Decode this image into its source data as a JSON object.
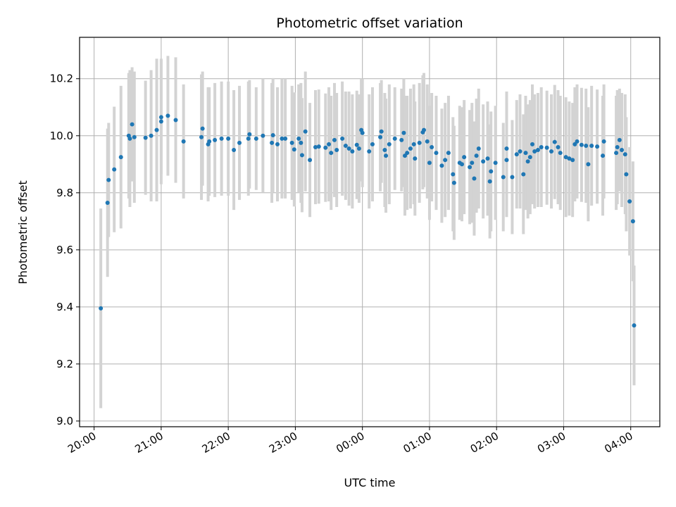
{
  "chart_data": {
    "type": "scatter",
    "title": "Photometric offset variation",
    "xlabel": "UTC time",
    "ylabel": "Photometric offset",
    "x_unit": "UTC time (HH:MM)",
    "x_ticks": [
      "20:00",
      "21:00",
      "22:00",
      "23:00",
      "00:00",
      "01:00",
      "02:00",
      "03:00",
      "04:00"
    ],
    "y_ticks": [
      "9.0",
      "9.2",
      "9.4",
      "9.6",
      "9.8",
      "10.0",
      "10.2"
    ],
    "xlim": [
      "19:47",
      "28:26"
    ],
    "ylim": [
      8.98,
      10.345
    ],
    "grid": true,
    "marker_color": "#1f77b4",
    "errorbar_color": "#d3d3d3",
    "series": [
      {
        "points": [
          [
            "20:06",
            9.395,
            0.35
          ],
          [
            "20:12",
            9.765,
            0.26
          ],
          [
            "20:13",
            9.845,
            0.2
          ],
          [
            "20:18",
            9.882,
            0.22
          ],
          [
            "20:24",
            9.925,
            0.25
          ],
          [
            "20:31",
            10.0,
            0.22
          ],
          [
            "20:32",
            9.99,
            0.24
          ],
          [
            "20:34",
            10.04,
            0.2
          ],
          [
            "20:36",
            9.995,
            0.23
          ],
          [
            "20:46",
            9.993,
            0.2
          ],
          [
            "20:51",
            10.0,
            0.23
          ],
          [
            "20:56",
            10.02,
            0.25
          ],
          [
            "21:00",
            10.05,
            0.22
          ],
          [
            "21:00",
            10.065,
            0.2
          ],
          [
            "21:06",
            10.07,
            0.21
          ],
          [
            "21:13",
            10.055,
            0.22
          ],
          [
            "21:20",
            9.98,
            0.2
          ],
          [
            "21:36",
            9.995,
            0.22
          ],
          [
            "21:37",
            10.025,
            0.2
          ],
          [
            "21:42",
            9.97,
            0.2
          ],
          [
            "21:43",
            9.98,
            0.19
          ],
          [
            "21:48",
            9.985,
            0.2
          ],
          [
            "21:54",
            9.99,
            0.2
          ],
          [
            "22:00",
            9.99,
            0.2
          ],
          [
            "22:05",
            9.95,
            0.21
          ],
          [
            "22:10",
            9.975,
            0.2
          ],
          [
            "22:18",
            9.99,
            0.2
          ],
          [
            "22:19",
            10.005,
            0.19
          ],
          [
            "22:25",
            9.99,
            0.18
          ],
          [
            "22:31",
            10.0,
            0.2
          ],
          [
            "22:39",
            9.975,
            0.21
          ],
          [
            "22:40",
            10.002,
            0.2
          ],
          [
            "22:44",
            9.97,
            0.2
          ],
          [
            "22:48",
            9.99,
            0.21
          ],
          [
            "22:51",
            9.99,
            0.21
          ],
          [
            "22:57",
            9.975,
            0.2
          ],
          [
            "22:59",
            9.952,
            0.2
          ],
          [
            "23:03",
            9.99,
            0.19
          ],
          [
            "23:05",
            9.975,
            0.21
          ],
          [
            "23:06",
            9.932,
            0.2
          ],
          [
            "23:09",
            10.015,
            0.21
          ],
          [
            "23:13",
            9.915,
            0.2
          ],
          [
            "23:18",
            9.96,
            0.2
          ],
          [
            "23:21",
            9.962,
            0.2
          ],
          [
            "23:27",
            9.958,
            0.19
          ],
          [
            "23:30",
            9.97,
            0.2
          ],
          [
            "23:32",
            9.94,
            0.2
          ],
          [
            "23:35",
            9.985,
            0.2
          ],
          [
            "23:37",
            9.95,
            0.2
          ],
          [
            "23:42",
            9.99,
            0.2
          ],
          [
            "23:45",
            9.965,
            0.19
          ],
          [
            "23:48",
            9.955,
            0.2
          ],
          [
            "23:51",
            9.945,
            0.2
          ],
          [
            "23:55",
            9.968,
            0.19
          ],
          [
            "23:57",
            9.955,
            0.19
          ],
          [
            "23:59",
            10.02,
            0.18
          ],
          [
            "24:00",
            10.01,
            0.19
          ],
          [
            "24:06",
            9.945,
            0.2
          ],
          [
            "24:09",
            9.97,
            0.2
          ],
          [
            "24:16",
            9.995,
            0.19
          ],
          [
            "24:17",
            10.015,
            0.18
          ],
          [
            "24:20",
            9.95,
            0.2
          ],
          [
            "24:21",
            9.93,
            0.2
          ],
          [
            "24:24",
            9.97,
            0.21
          ],
          [
            "24:29",
            9.99,
            0.18
          ],
          [
            "24:35",
            9.985,
            0.18
          ],
          [
            "24:37",
            10.01,
            0.19
          ],
          [
            "24:38",
            9.93,
            0.21
          ],
          [
            "24:40",
            9.94,
            0.2
          ],
          [
            "24:43",
            9.955,
            0.21
          ],
          [
            "24:46",
            9.97,
            0.21
          ],
          [
            "24:47",
            9.92,
            0.2
          ],
          [
            "24:51",
            9.975,
            0.21
          ],
          [
            "24:54",
            10.012,
            0.2
          ],
          [
            "24:55",
            10.02,
            0.2
          ],
          [
            "24:58",
            9.98,
            0.2
          ],
          [
            "25:00",
            9.905,
            0.2
          ],
          [
            "25:02",
            9.96,
            0.19
          ],
          [
            "25:06",
            9.94,
            0.2
          ],
          [
            "25:11",
            9.895,
            0.2
          ],
          [
            "25:14",
            9.915,
            0.2
          ],
          [
            "25:17",
            9.94,
            0.2
          ],
          [
            "25:21",
            9.865,
            0.2
          ],
          [
            "25:22",
            9.835,
            0.2
          ],
          [
            "25:27",
            9.905,
            0.2
          ],
          [
            "25:29",
            9.9,
            0.2
          ],
          [
            "25:31",
            9.925,
            0.2
          ],
          [
            "25:36",
            9.89,
            0.2
          ],
          [
            "25:38",
            9.905,
            0.21
          ],
          [
            "25:40",
            9.85,
            0.2
          ],
          [
            "25:42",
            9.93,
            0.2
          ],
          [
            "25:44",
            9.955,
            0.21
          ],
          [
            "25:48",
            9.91,
            0.2
          ],
          [
            "25:52",
            9.92,
            0.2
          ],
          [
            "25:54",
            9.84,
            0.2
          ],
          [
            "25:55",
            9.875,
            0.21
          ],
          [
            "25:59",
            9.905,
            0.2
          ],
          [
            "26:06",
            9.855,
            0.19
          ],
          [
            "26:09",
            9.915,
            0.2
          ],
          [
            "26:09",
            9.955,
            0.2
          ],
          [
            "26:14",
            9.855,
            0.2
          ],
          [
            "26:18",
            9.935,
            0.19
          ],
          [
            "26:21",
            9.945,
            0.2
          ],
          [
            "26:24",
            9.865,
            0.21
          ],
          [
            "26:26",
            9.94,
            0.2
          ],
          [
            "26:28",
            9.91,
            0.2
          ],
          [
            "26:30",
            9.925,
            0.2
          ],
          [
            "26:32",
            9.97,
            0.21
          ],
          [
            "26:34",
            9.945,
            0.2
          ],
          [
            "26:37",
            9.95,
            0.2
          ],
          [
            "26:40",
            9.96,
            0.21
          ],
          [
            "26:45",
            9.958,
            0.2
          ],
          [
            "26:49",
            9.945,
            0.2
          ],
          [
            "26:52",
            9.978,
            0.2
          ],
          [
            "26:55",
            9.96,
            0.2
          ],
          [
            "26:57",
            9.94,
            0.2
          ],
          [
            "27:02",
            9.925,
            0.21
          ],
          [
            "27:05",
            9.92,
            0.2
          ],
          [
            "27:08",
            9.915,
            0.2
          ],
          [
            "27:10",
            9.97,
            0.2
          ],
          [
            "27:12",
            9.98,
            0.2
          ],
          [
            "27:16",
            9.968,
            0.2
          ],
          [
            "27:20",
            9.965,
            0.2
          ],
          [
            "27:22",
            9.9,
            0.2
          ],
          [
            "27:25",
            9.965,
            0.21
          ],
          [
            "27:30",
            9.962,
            0.2
          ],
          [
            "27:35",
            9.93,
            0.21
          ],
          [
            "27:36",
            9.98,
            0.2
          ],
          [
            "27:47",
            9.94,
            0.2
          ],
          [
            "27:48",
            9.96,
            0.2
          ],
          [
            "27:50",
            9.985,
            0.18
          ],
          [
            "27:52",
            9.95,
            0.2
          ],
          [
            "27:55",
            9.935,
            0.21
          ],
          [
            "27:56",
            9.865,
            0.2
          ],
          [
            "27:59",
            9.77,
            0.19
          ],
          [
            "28:02",
            9.7,
            0.21
          ],
          [
            "28:03",
            9.335,
            0.21
          ]
        ]
      }
    ]
  }
}
